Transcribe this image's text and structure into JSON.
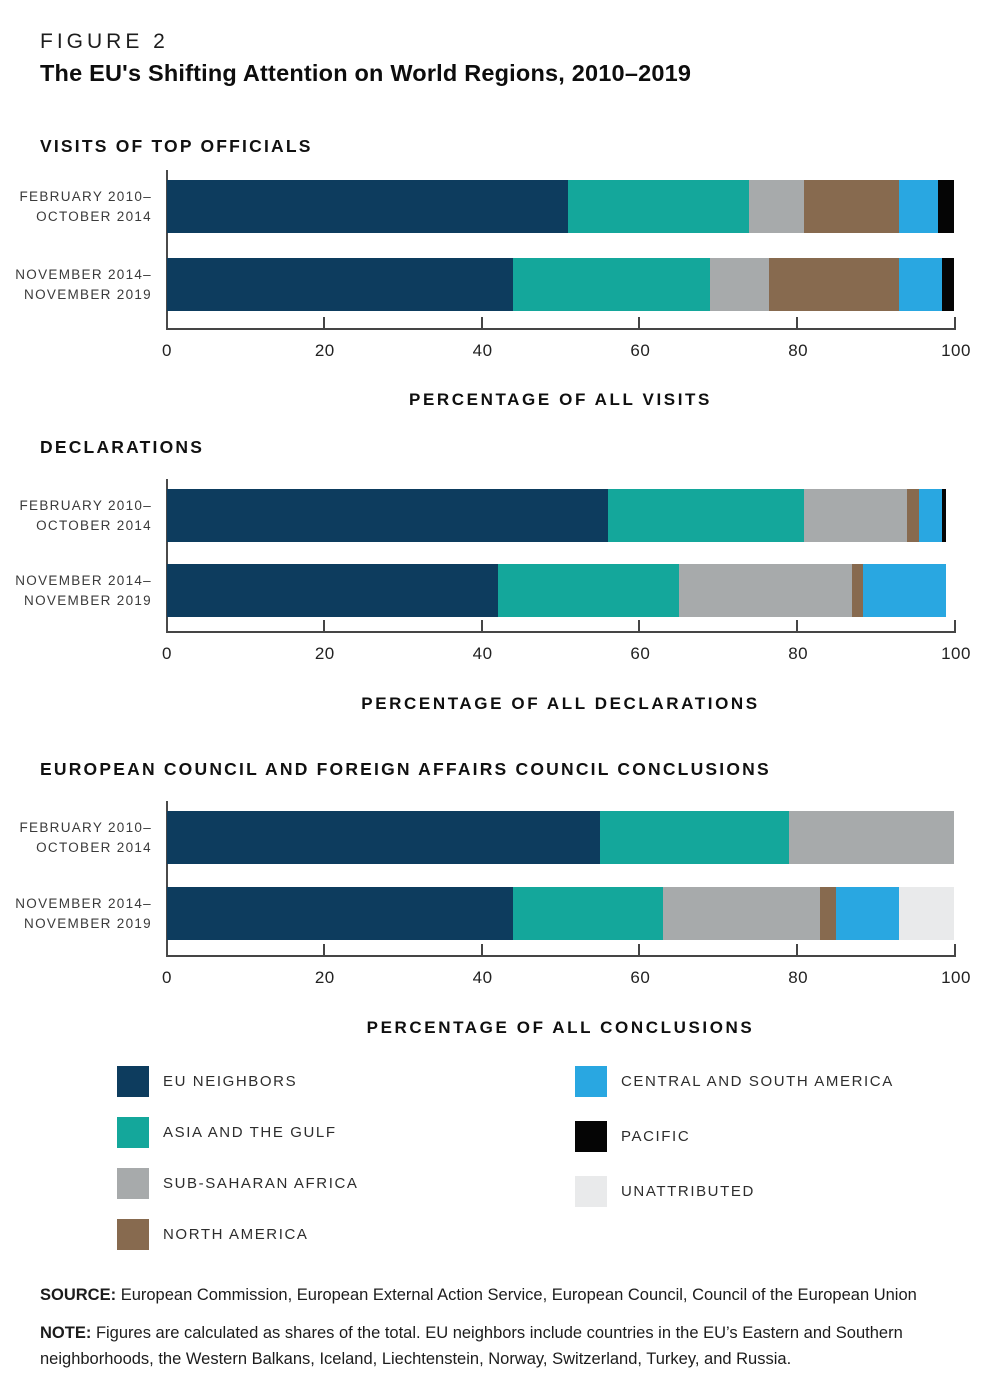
{
  "figure_label": "FIGURE 2",
  "title": "The EU's Shifting Attention on World Regions, 2010–2019",
  "colors": {
    "EU NEIGHBORS": "#0d3c5e",
    "ASIA AND THE GULF": "#14a79b",
    "SUB-SAHARAN AFRICA": "#a7aaab",
    "NORTH AMERICA": "#876a4f",
    "CENTRAL AND SOUTH AMERICA": "#29a7e1",
    "PACIFIC": "#050505",
    "UNATTRIBUTED": "#e9eaeb"
  },
  "category_lines": [
    [
      "FEBRUARY 2010–",
      "OCTOBER 2014"
    ],
    [
      "NOVEMBER 2014–",
      "NOVEMBER 2019"
    ]
  ],
  "chart_data": [
    {
      "type": "bar",
      "stacked": true,
      "orientation": "horizontal",
      "title": "VISITS OF TOP OFFICIALS",
      "xlabel": "PERCENTAGE OF ALL VISITS",
      "xlim": [
        0,
        100
      ],
      "x_ticks": [
        0,
        20,
        40,
        60,
        80,
        100
      ],
      "categories": [
        "FEBRUARY 2010–OCTOBER 2014",
        "NOVEMBER 2014–NOVEMBER 2019"
      ],
      "series": [
        {
          "name": "EU NEIGHBORS",
          "values": [
            51,
            44
          ]
        },
        {
          "name": "ASIA AND THE GULF",
          "values": [
            23,
            25
          ]
        },
        {
          "name": "SUB-SAHARAN AFRICA",
          "values": [
            7,
            7.5
          ]
        },
        {
          "name": "NORTH AMERICA",
          "values": [
            12,
            16.5
          ]
        },
        {
          "name": "CENTRAL AND SOUTH AMERICA",
          "values": [
            5,
            5.5
          ]
        },
        {
          "name": "PACIFIC",
          "values": [
            2,
            1.5
          ]
        },
        {
          "name": "UNATTRIBUTED",
          "values": [
            0,
            0
          ]
        }
      ]
    },
    {
      "type": "bar",
      "stacked": true,
      "orientation": "horizontal",
      "title": "DECLARATIONS",
      "xlabel": "PERCENTAGE OF ALL DECLARATIONS",
      "xlim": [
        0,
        100
      ],
      "x_ticks": [
        0,
        20,
        40,
        60,
        80,
        100
      ],
      "categories": [
        "FEBRUARY 2010–OCTOBER 2014",
        "NOVEMBER 2014–NOVEMBER 2019"
      ],
      "series": [
        {
          "name": "EU NEIGHBORS",
          "values": [
            56,
            42
          ]
        },
        {
          "name": "ASIA AND THE GULF",
          "values": [
            25,
            23
          ]
        },
        {
          "name": "SUB-SAHARAN AFRICA",
          "values": [
            13,
            22
          ]
        },
        {
          "name": "NORTH AMERICA",
          "values": [
            1.5,
            1.5
          ]
        },
        {
          "name": "CENTRAL AND SOUTH AMERICA",
          "values": [
            3,
            10.5
          ]
        },
        {
          "name": "PACIFIC",
          "values": [
            0.5,
            0
          ]
        },
        {
          "name": "UNATTRIBUTED",
          "values": [
            0,
            0
          ]
        }
      ]
    },
    {
      "type": "bar",
      "stacked": true,
      "orientation": "horizontal",
      "title": "EUROPEAN COUNCIL AND FOREIGN AFFAIRS COUNCIL CONCLUSIONS",
      "xlabel": "PERCENTAGE OF ALL CONCLUSIONS",
      "xlim": [
        0,
        100
      ],
      "x_ticks": [
        0,
        20,
        40,
        60,
        80,
        100
      ],
      "categories": [
        "FEBRUARY 2010–OCTOBER 2014",
        "NOVEMBER 2014–NOVEMBER 2019"
      ],
      "series": [
        {
          "name": "EU NEIGHBORS",
          "values": [
            55,
            44
          ]
        },
        {
          "name": "ASIA AND THE GULF",
          "values": [
            24,
            19
          ]
        },
        {
          "name": "SUB-SAHARAN AFRICA",
          "values": [
            21,
            20
          ]
        },
        {
          "name": "NORTH AMERICA",
          "values": [
            0,
            2
          ]
        },
        {
          "name": "CENTRAL AND SOUTH AMERICA",
          "values": [
            0,
            8
          ]
        },
        {
          "name": "PACIFIC",
          "values": [
            0,
            0
          ]
        },
        {
          "name": "UNATTRIBUTED",
          "values": [
            0,
            7
          ]
        }
      ]
    }
  ],
  "legend": {
    "left": [
      "EU NEIGHBORS",
      "ASIA AND THE GULF",
      "SUB-SAHARAN AFRICA",
      "NORTH AMERICA"
    ],
    "right": [
      "CENTRAL AND SOUTH AMERICA",
      "PACIFIC",
      "UNATTRIBUTED"
    ]
  },
  "source": {
    "label": "SOURCE:",
    "text": "European Commission, European External Action Service, European Council, Council of the European Union"
  },
  "note": {
    "label": "NOTE:",
    "text": "Figures are calculated as shares of the total. EU neighbors include countries in the EU’s Eastern and Southern neighborhoods, the Western Balkans, Iceland, Liechtenstein, Norway, Switzerland, Turkey, and Russia."
  }
}
